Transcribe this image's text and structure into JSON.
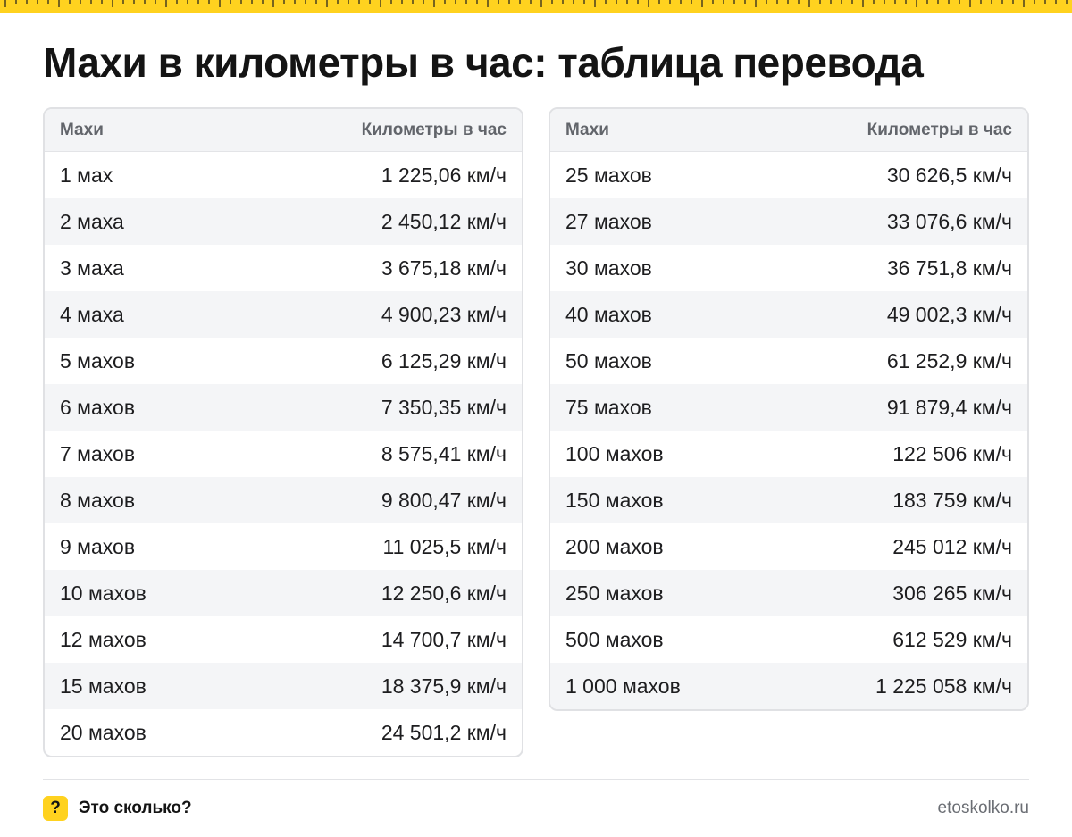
{
  "title": "Махи в километры в час: таблица перевода",
  "colors": {
    "accent": "#ffd21f",
    "header_bg": "#f3f4f6",
    "stripe_bg": "#f4f5f7",
    "border": "#e0e1e4"
  },
  "table_left": {
    "header": {
      "col1": "Махи",
      "col2": "Километры в час"
    },
    "rows": [
      {
        "mach": "1 мах",
        "kmh": "1 225,06 км/ч"
      },
      {
        "mach": "2 маха",
        "kmh": "2 450,12 км/ч"
      },
      {
        "mach": "3 маха",
        "kmh": "3 675,18 км/ч"
      },
      {
        "mach": "4 маха",
        "kmh": "4 900,23 км/ч"
      },
      {
        "mach": "5 махов",
        "kmh": "6 125,29 км/ч"
      },
      {
        "mach": "6 махов",
        "kmh": "7 350,35 км/ч"
      },
      {
        "mach": "7 махов",
        "kmh": "8 575,41 км/ч"
      },
      {
        "mach": "8 махов",
        "kmh": "9 800,47 км/ч"
      },
      {
        "mach": "9 махов",
        "kmh": "11 025,5 км/ч"
      },
      {
        "mach": "10 махов",
        "kmh": "12 250,6 км/ч"
      },
      {
        "mach": "12 махов",
        "kmh": "14 700,7 км/ч"
      },
      {
        "mach": "15 махов",
        "kmh": "18 375,9 км/ч"
      },
      {
        "mach": "20 махов",
        "kmh": "24 501,2 км/ч"
      }
    ]
  },
  "table_right": {
    "header": {
      "col1": "Махи",
      "col2": "Километры в час"
    },
    "rows": [
      {
        "mach": "25 махов",
        "kmh": "30 626,5 км/ч"
      },
      {
        "mach": "27 махов",
        "kmh": "33 076,6 км/ч"
      },
      {
        "mach": "30 махов",
        "kmh": "36 751,8 км/ч"
      },
      {
        "mach": "40 махов",
        "kmh": "49 002,3 км/ч"
      },
      {
        "mach": "50 махов",
        "kmh": "61 252,9 км/ч"
      },
      {
        "mach": "75 махов",
        "kmh": "91 879,4 км/ч"
      },
      {
        "mach": "100 махов",
        "kmh": "122 506 км/ч"
      },
      {
        "mach": "150 махов",
        "kmh": "183 759 км/ч"
      },
      {
        "mach": "200 махов",
        "kmh": "245 012 км/ч"
      },
      {
        "mach": "250 махов",
        "kmh": "306 265 км/ч"
      },
      {
        "mach": "500 махов",
        "kmh": "612 529 км/ч"
      },
      {
        "mach": "1 000 махов",
        "kmh": "1 225 058 км/ч"
      }
    ]
  },
  "footer": {
    "badge_icon": "question-mark-icon",
    "badge_glyph": "?",
    "brand": "Это сколько?",
    "site": "etoskolko.ru"
  }
}
